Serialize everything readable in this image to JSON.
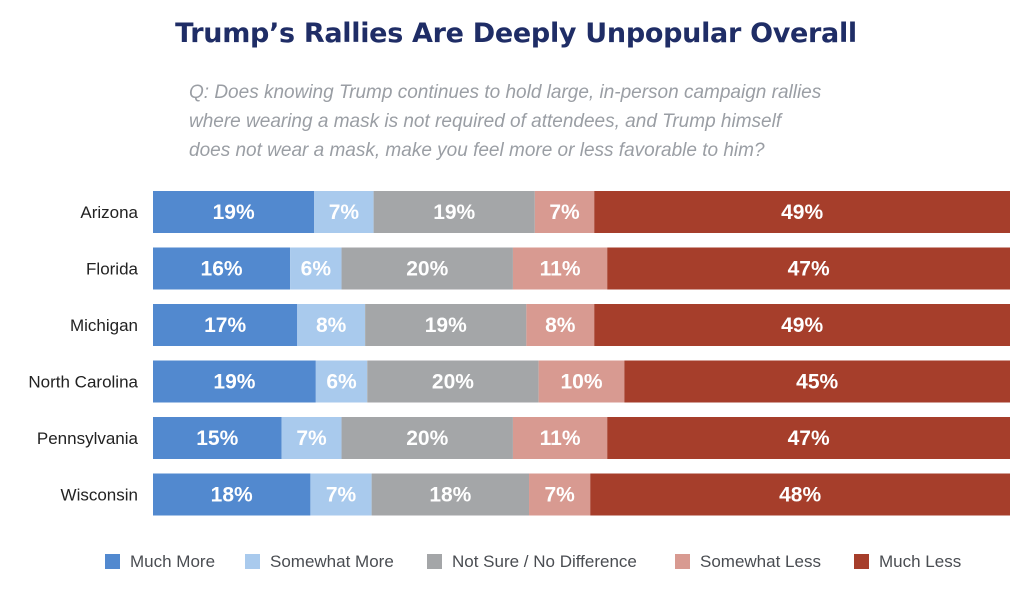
{
  "chart_data": {
    "type": "bar",
    "orientation": "horizontal",
    "stacked": true,
    "title": "Trump’s Rallies Are Deeply Unpopular Overall",
    "subtitle_lines": [
      "Q: Does knowing Trump continues to hold large, in-person campaign rallies",
      "where wearing a mask is not required of attendees, and Trump himself",
      "does not wear a mask, make you feel more or less favorable to him?"
    ],
    "categories": [
      "Arizona",
      "Florida",
      "Michigan",
      "North Carolina",
      "Pennsylvania",
      "Wisconsin"
    ],
    "series": [
      {
        "name": "Much More",
        "color": "#5289cf",
        "values": [
          19,
          16,
          17,
          19,
          15,
          18
        ]
      },
      {
        "name": "Somewhat More",
        "color": "#a9caed",
        "values": [
          7,
          6,
          8,
          6,
          7,
          7
        ]
      },
      {
        "name": "Not Sure / No Difference",
        "color": "#a4a6a8",
        "values": [
          19,
          20,
          19,
          20,
          20,
          18
        ]
      },
      {
        "name": "Somewhat Less",
        "color": "#d89a91",
        "values": [
          7,
          11,
          8,
          10,
          11,
          7
        ]
      },
      {
        "name": "Much Less",
        "color": "#a63e2b",
        "values": [
          49,
          47,
          49,
          45,
          47,
          48
        ]
      }
    ],
    "value_suffix": "%",
    "legend_position": "bottom"
  }
}
